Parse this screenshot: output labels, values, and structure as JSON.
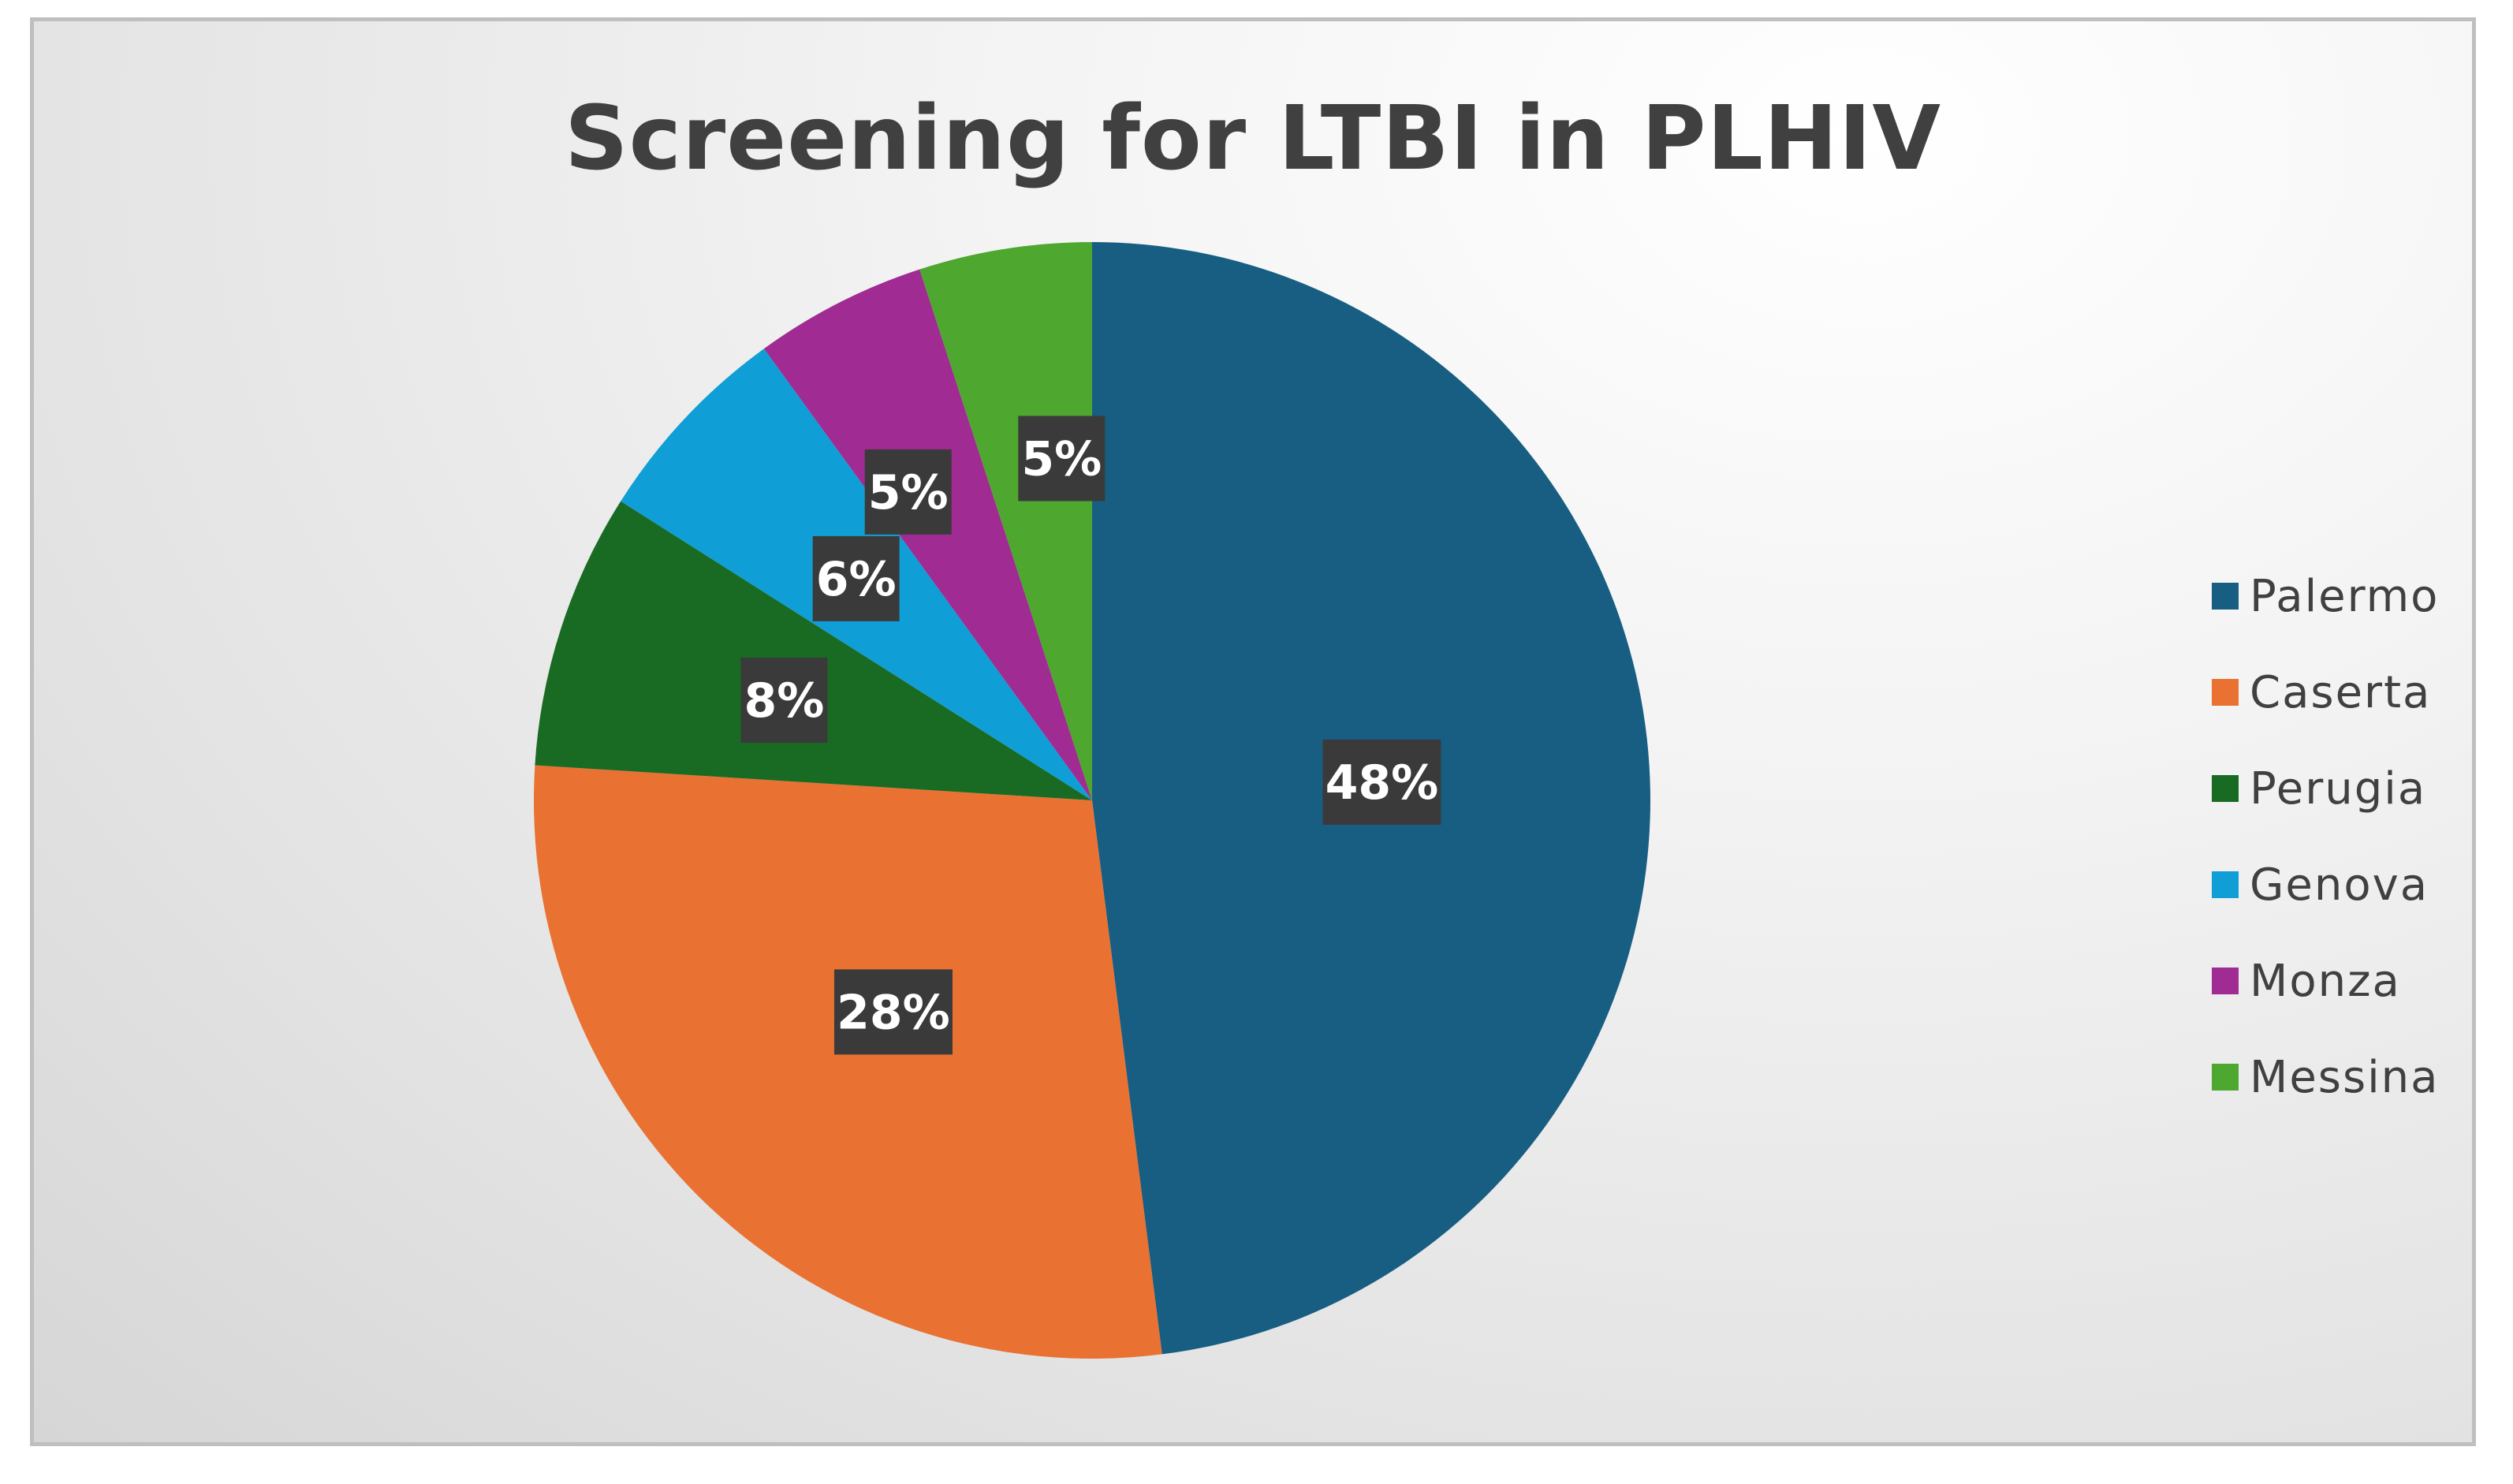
{
  "chart_data": {
    "type": "pie",
    "title": "Screening for LTBI in PLHIV",
    "categories": [
      "Palermo",
      "Caserta",
      "Perugia",
      "Genova",
      "Monza",
      "Messina"
    ],
    "values": [
      48,
      28,
      8,
      6,
      5,
      5
    ],
    "labels": [
      "48%",
      "28%",
      "8%",
      "6%",
      "5%",
      "5%"
    ],
    "colors": [
      "#175E82",
      "#E97132",
      "#196B24",
      "#0F9ED5",
      "#A02B93",
      "#4EA72E"
    ],
    "legend_position": "right",
    "start_angle": "12 o'clock",
    "direction": "clockwise"
  }
}
